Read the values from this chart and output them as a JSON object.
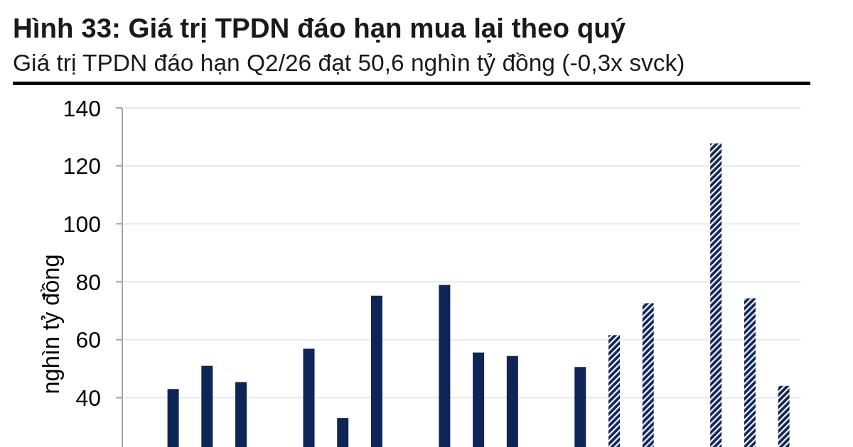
{
  "chart_data": {
    "type": "bar",
    "title": "Hình 33: Giá trị TPDN đáo hạn mua lại theo quý",
    "subtitle": "Giá trị TPDN đáo hạn Q2/26 đạt 50,6 nghìn tỷ đồng (-0,3x svck)",
    "ylabel": "nghìn tỷ đồng",
    "categories": [
      null,
      null,
      null,
      null,
      null,
      null,
      null,
      null,
      null,
      null,
      null,
      null,
      null,
      null,
      null,
      null,
      null,
      null,
      null,
      null
    ],
    "series": [
      {
        "color": "#0f2557",
        "values": [
          null,
          43.0,
          51.0,
          45.4,
          null,
          56.9,
          33.0,
          75.2,
          null,
          78.9,
          55.6,
          54.4,
          null,
          50.6,
          null,
          null,
          null,
          null,
          null,
          null
        ]
      },
      {
        "color": "#0f2557",
        "values": [
          null,
          null,
          null,
          null,
          null,
          null,
          null,
          null,
          null,
          null,
          null,
          null,
          null,
          null,
          61.6,
          72.6,
          null,
          127.7,
          74.3,
          44.1
        ]
      }
    ],
    "ylim": [
      23,
      140
    ],
    "yticks": [
      40,
      60,
      80,
      100,
      120,
      140
    ],
    "grid": "y",
    "tick_labels": "y"
  }
}
